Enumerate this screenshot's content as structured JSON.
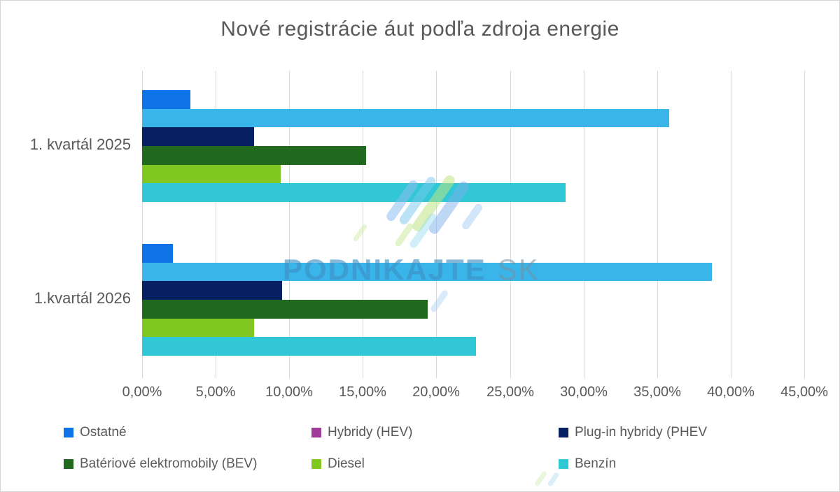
{
  "title": "Nové registrácie áut podľa zdroja energie",
  "watermark": {
    "text": "PODNIKAJTE",
    "suffix": "SK"
  },
  "chart_data": {
    "type": "bar",
    "orientation": "horizontal",
    "title": "Nové registrácie áut podľa zdroja energie",
    "categories": [
      "1. kvartál 2025",
      "1.kvartál 2026"
    ],
    "series": [
      {
        "name": "Ostatné",
        "bar_color": "#0d73e7",
        "legend_color": "#0d73e7",
        "values": [
          3.3,
          2.1
        ]
      },
      {
        "name": "Hybridy (HEV)",
        "bar_color": "#39b5e9",
        "legend_color": "#a03c9a",
        "values": [
          35.8,
          38.7
        ]
      },
      {
        "name": "Plug-in hybridy (PHEV",
        "bar_color": "#062061",
        "legend_color": "#062061",
        "values": [
          7.6,
          9.5
        ]
      },
      {
        "name": "Batériové elektromobily (BEV)",
        "bar_color": "#21691f",
        "legend_color": "#21691f",
        "values": [
          15.2,
          19.4
        ]
      },
      {
        "name": "Diesel",
        "bar_color": "#80c821",
        "legend_color": "#80c821",
        "values": [
          9.4,
          7.6
        ]
      },
      {
        "name": "Benzín",
        "bar_color": "#31c7d6",
        "legend_color": "#31c7d6",
        "values": [
          28.8,
          22.7
        ]
      }
    ],
    "x_ticks": [
      "0,00%",
      "5,00%",
      "10,00%",
      "15,00%",
      "20,00%",
      "25,00%",
      "30,00%",
      "35,00%",
      "40,00%",
      "45,00%"
    ],
    "xlim": [
      0,
      45
    ],
    "grid": true,
    "legend_position": "bottom",
    "legend_rows": [
      [
        0,
        1,
        2
      ],
      [
        3,
        4,
        5
      ]
    ],
    "axis_text_color": "#595959",
    "gridline_color": "#d9d9d9"
  }
}
